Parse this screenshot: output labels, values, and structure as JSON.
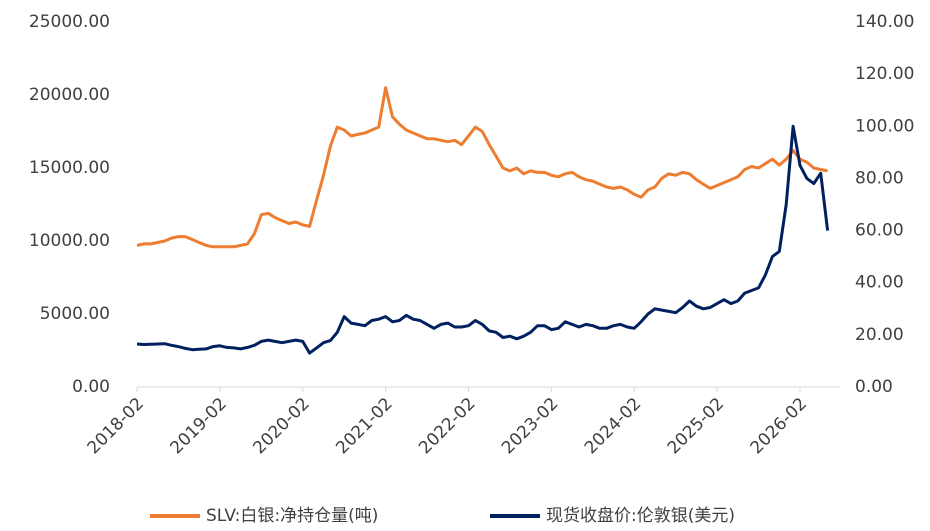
{
  "chart_data": {
    "type": "line",
    "x": [
      "2018-02",
      "2018-03",
      "2018-04",
      "2018-05",
      "2018-06",
      "2018-07",
      "2018-08",
      "2018-09",
      "2018-10",
      "2018-11",
      "2018-12",
      "2019-01",
      "2019-02",
      "2019-03",
      "2019-04",
      "2019-05",
      "2019-06",
      "2019-07",
      "2019-08",
      "2019-09",
      "2019-10",
      "2019-11",
      "2019-12",
      "2020-01",
      "2020-02",
      "2020-03",
      "2020-04",
      "2020-05",
      "2020-06",
      "2020-07",
      "2020-08",
      "2020-09",
      "2020-10",
      "2020-11",
      "2020-12",
      "2021-01",
      "2021-02",
      "2021-03",
      "2021-04",
      "2021-05",
      "2021-06",
      "2021-07",
      "2021-08",
      "2021-09",
      "2021-10",
      "2021-11",
      "2021-12",
      "2022-01",
      "2022-02",
      "2022-03",
      "2022-04",
      "2022-05",
      "2022-06",
      "2022-07",
      "2022-08",
      "2022-09",
      "2022-10",
      "2022-11",
      "2022-12",
      "2023-01",
      "2023-02",
      "2023-03",
      "2023-04",
      "2023-05",
      "2023-06",
      "2023-07",
      "2023-08",
      "2023-09",
      "2023-10",
      "2023-11",
      "2023-12",
      "2024-01",
      "2024-02",
      "2024-03",
      "2024-04",
      "2024-05",
      "2024-06",
      "2024-07",
      "2024-08",
      "2024-09",
      "2024-10",
      "2024-11",
      "2024-12",
      "2025-01",
      "2025-02",
      "2025-03",
      "2025-04",
      "2025-05",
      "2025-06",
      "2025-07",
      "2025-08",
      "2025-09",
      "2025-10",
      "2025-11",
      "2025-12",
      "2026-01",
      "2026-02",
      "2026-03",
      "2026-04",
      "2026-05",
      "2026-06"
    ],
    "xticks": [
      "2018-02",
      "2019-02",
      "2020-02",
      "2021-02",
      "2022-02",
      "2023-02",
      "2024-02",
      "2025-02",
      "2026-02"
    ],
    "series": [
      {
        "name": "SLV:白银:净持仓量(吨)",
        "color": "#ED7D31",
        "values": [
          9700,
          9800,
          9800,
          9900,
          10000,
          10200,
          10300,
          10300,
          10100,
          9900,
          9700,
          9600,
          9600,
          9600,
          9600,
          9700,
          9800,
          10500,
          11800,
          11900,
          11600,
          11400,
          11200,
          11300,
          11100,
          11000,
          12800,
          14500,
          16500,
          17800,
          17600,
          17200,
          17300,
          17400,
          17600,
          17800,
          20500,
          18500,
          18000,
          17600,
          17400,
          17200,
          17000,
          17000,
          16900,
          16800,
          16900,
          16600,
          17200,
          17800,
          17500,
          16600,
          15800,
          15000,
          14800,
          15000,
          14600,
          14800,
          14700,
          14700,
          14500,
          14400,
          14600,
          14700,
          14400,
          14200,
          14100,
          13900,
          13700,
          13600,
          13700,
          13500,
          13200,
          13000,
          13500,
          13700,
          14300,
          14600,
          14500,
          14700,
          14600,
          14200,
          13900,
          13600,
          13800,
          14000,
          14200,
          14400,
          14900,
          15100,
          15000,
          15300,
          15600,
          15200,
          15600,
          16200,
          15600,
          15400,
          15000,
          14900,
          14800
        ]
      },
      {
        "name": "现货收盘价:伦敦银(美元)",
        "color": "#002060",
        "axis": "y2",
        "values": [
          16.5,
          16.3,
          16.4,
          16.5,
          16.6,
          16.0,
          15.5,
          14.8,
          14.3,
          14.5,
          14.6,
          15.5,
          15.8,
          15.2,
          15.0,
          14.6,
          15.2,
          16.0,
          17.5,
          18.0,
          17.5,
          17.0,
          17.5,
          18.0,
          17.5,
          13.0,
          15.0,
          17.0,
          17.8,
          21.0,
          27.0,
          24.5,
          24.0,
          23.5,
          25.5,
          26.0,
          27.0,
          25.0,
          25.5,
          27.5,
          26.0,
          25.5,
          24.0,
          22.5,
          24.0,
          24.5,
          23.0,
          23.0,
          23.5,
          25.5,
          24.0,
          21.5,
          21.0,
          19.0,
          19.5,
          18.5,
          19.5,
          21.0,
          23.5,
          23.5,
          22.0,
          22.5,
          25.0,
          24.0,
          23.0,
          24.0,
          23.5,
          22.5,
          22.5,
          23.5,
          24.0,
          23.0,
          22.5,
          25.0,
          28.0,
          30.0,
          29.5,
          29.0,
          28.5,
          30.5,
          33.0,
          31.0,
          30.0,
          30.5,
          32.0,
          33.5,
          32.0,
          33.0,
          36.0,
          37.0,
          38.0,
          43.0,
          50.0,
          52.0,
          70.0,
          100.0,
          85.0,
          80.0,
          78.0,
          82.0,
          60.0
        ]
      }
    ],
    "ylim": [
      0,
      25000
    ],
    "yticks": [
      {
        "value": 0,
        "label": "0.00"
      },
      {
        "value": 5000,
        "label": "5000.00"
      },
      {
        "value": 10000,
        "label": "10000.00"
      },
      {
        "value": 15000,
        "label": "15000.00"
      },
      {
        "value": 20000,
        "label": "20000.00"
      },
      {
        "value": 25000,
        "label": "25000.00"
      }
    ],
    "y2lim": [
      0,
      140
    ],
    "y2ticks": [
      {
        "value": 0,
        "label": "0.00"
      },
      {
        "value": 20,
        "label": "20.00"
      },
      {
        "value": 40,
        "label": "40.00"
      },
      {
        "value": 60,
        "label": "60.00"
      },
      {
        "value": 80,
        "label": "80.00"
      },
      {
        "value": 100,
        "label": "100.00"
      },
      {
        "value": 120,
        "label": "120.00"
      },
      {
        "value": 140,
        "label": "140.00"
      }
    ],
    "legend": "bottom"
  }
}
